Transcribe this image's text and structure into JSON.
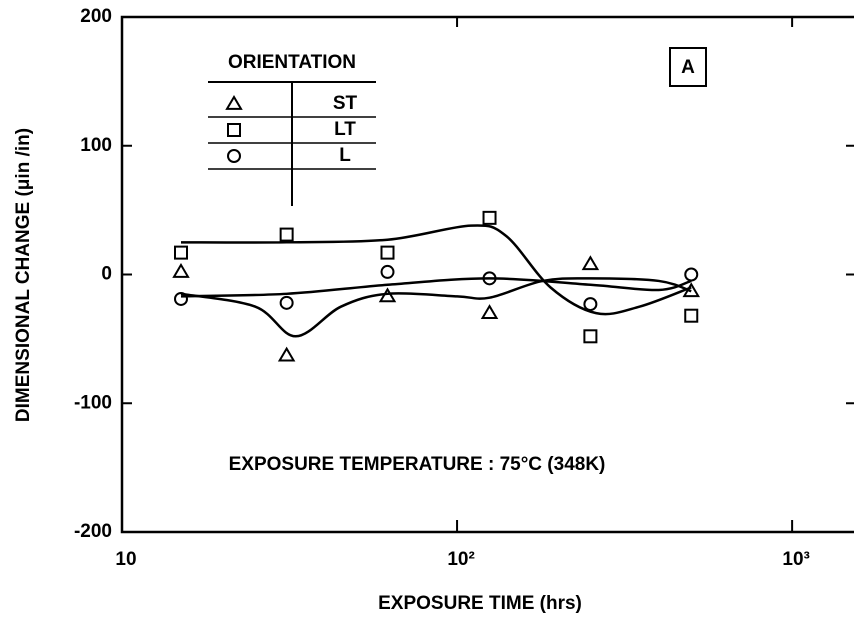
{
  "chart_data": {
    "type": "scatter",
    "x_label": "EXPOSURE TIME (hrs)",
    "y_label": "DIMENSIONAL CHANGE (μin /in)",
    "annotation": "EXPOSURE TEMPERATURE : 75°C (348K)",
    "panel_label": "A",
    "legend_title": "ORIENTATION",
    "xscale": "log",
    "xlim": [
      10,
      1530
    ],
    "ylim": [
      -200,
      200
    ],
    "xticks": [
      10,
      {
        "value": 100,
        "label": "10²"
      },
      {
        "value": 1000,
        "label": "10³"
      }
    ],
    "yticks": [
      200,
      100,
      0,
      -100,
      -200
    ],
    "series": [
      {
        "name": "ST",
        "marker": "triangle",
        "color": "#000000",
        "x": [
          15,
          31,
          62,
          125,
          250,
          500
        ],
        "values": [
          2,
          -63,
          -17,
          -30,
          8,
          -13
        ],
        "curve_x": [
          15,
          25,
          33,
          45,
          62,
          100,
          125,
          180,
          250,
          400,
          500
        ],
        "curve_values": [
          -15,
          -25,
          -48,
          -25,
          -15,
          -17,
          -18,
          -5,
          -3,
          -5,
          -13
        ]
      },
      {
        "name": "LT",
        "marker": "square",
        "color": "#000000",
        "x": [
          15,
          31,
          62,
          125,
          250,
          500
        ],
        "values": [
          17,
          31,
          17,
          44,
          -48,
          -32
        ],
        "curve_x": [
          15,
          31,
          62,
          110,
          140,
          190,
          260,
          350,
          500
        ],
        "curve_values": [
          25,
          25,
          27,
          38,
          30,
          -10,
          -30,
          -25,
          -10
        ]
      },
      {
        "name": "L",
        "marker": "circle",
        "color": "#000000",
        "x": [
          15,
          31,
          62,
          125,
          250,
          500
        ],
        "values": [
          -19,
          -22,
          2,
          -3,
          -23,
          0
        ],
        "curve_x": [
          15,
          31,
          62,
          125,
          250,
          400,
          500
        ],
        "curve_values": [
          -17,
          -15,
          -8,
          -3,
          -8,
          -12,
          -5
        ]
      }
    ]
  }
}
